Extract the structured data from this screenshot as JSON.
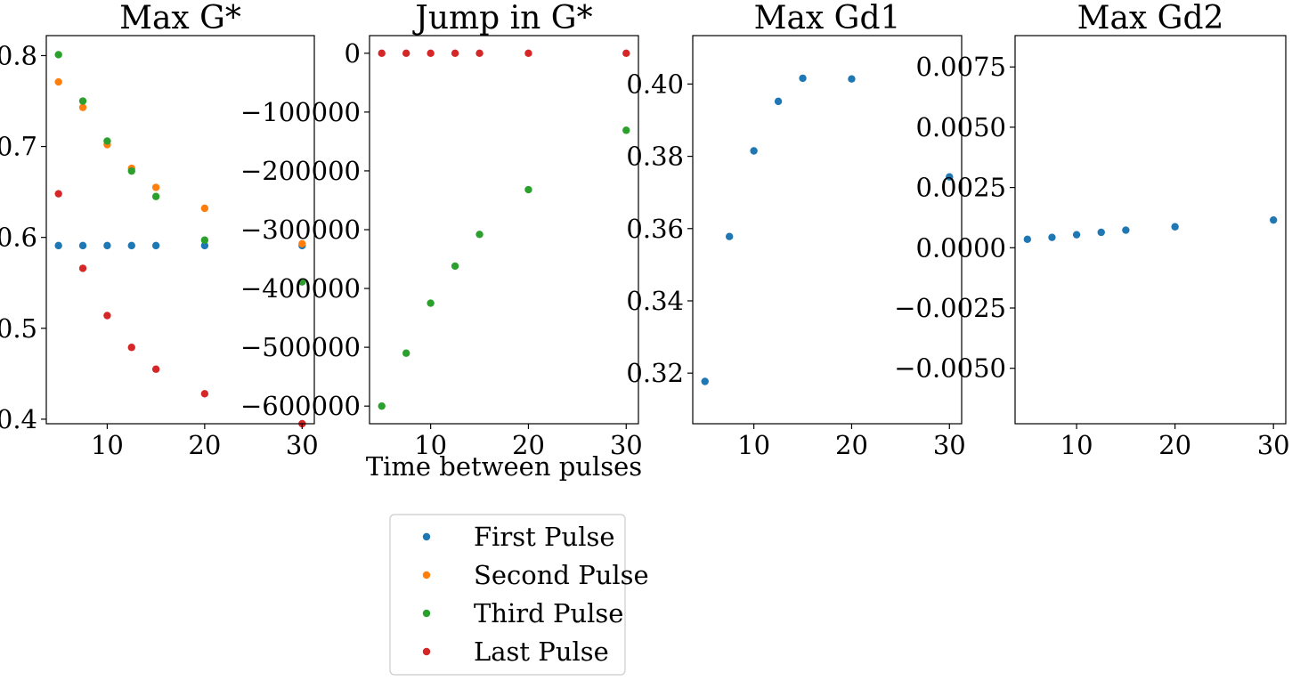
{
  "figure": {
    "legend": {
      "placement": "below second panel",
      "entries": [
        {
          "label": "First Pulse",
          "color": "#1f77b4"
        },
        {
          "label": "Second Pulse",
          "color": "#ff7f0e"
        },
        {
          "label": "Third Pulse",
          "color": "#2ca02c"
        },
        {
          "label": "Last Pulse",
          "color": "#d62728"
        }
      ]
    }
  },
  "chart_data": [
    {
      "type": "scatter",
      "title": "Max G*",
      "xlabel": "",
      "ylabel": "",
      "xlim": [
        3.75,
        31.25
      ],
      "ylim": [
        0.395,
        0.822
      ],
      "xticks": [
        10,
        20,
        30
      ],
      "xtick_labels": [
        "10",
        "20",
        "30"
      ],
      "yticks": [
        0.4,
        0.5,
        0.6,
        0.7,
        0.8
      ],
      "ytick_labels": [
        "0.4",
        "0.5",
        "0.6",
        "0.7",
        "0.8"
      ],
      "grid": false,
      "series": [
        {
          "color": "#1f77b4",
          "x": [
            5,
            7.5,
            10,
            12.5,
            15,
            20,
            30
          ],
          "y": [
            0.591,
            0.591,
            0.591,
            0.591,
            0.591,
            0.591,
            0.591
          ]
        },
        {
          "color": "#ff7f0e",
          "x": [
            5,
            7.5,
            10,
            12.5,
            15,
            20,
            30
          ],
          "y": [
            0.771,
            0.743,
            0.702,
            0.676,
            0.655,
            0.632,
            0.593
          ]
        },
        {
          "color": "#2ca02c",
          "x": [
            5,
            7.5,
            10,
            12.5,
            15,
            20,
            30
          ],
          "y": [
            0.801,
            0.75,
            0.706,
            0.673,
            0.645,
            0.597,
            0.551
          ]
        },
        {
          "color": "#d62728",
          "x": [
            5,
            7.5,
            10,
            12.5,
            15,
            20,
            30
          ],
          "y": [
            0.648,
            0.566,
            0.514,
            0.479,
            0.455,
            0.428,
            0.395
          ]
        }
      ]
    },
    {
      "type": "scatter",
      "title": "Jump in G*",
      "xlabel": "Time between pulses",
      "ylabel": "",
      "xlim": [
        3.75,
        31.25
      ],
      "ylim": [
        -630000,
        30000
      ],
      "xticks": [
        10,
        20,
        30
      ],
      "xtick_labels": [
        "10",
        "20",
        "30"
      ],
      "yticks": [
        0,
        -100000,
        -200000,
        -300000,
        -400000,
        -500000,
        -600000
      ],
      "ytick_labels": [
        "0",
        "−100000",
        "−200000",
        "−300000",
        "−400000",
        "−500000",
        "−600000"
      ],
      "grid": false,
      "series": [
        {
          "color": "#2ca02c",
          "x": [
            5,
            7.5,
            10,
            12.5,
            15,
            20,
            30
          ],
          "y": [
            -600000,
            -510000,
            -425000,
            -362000,
            -308000,
            -232000,
            -131000
          ]
        },
        {
          "color": "#d62728",
          "x": [
            5,
            7.5,
            10,
            12.5,
            15,
            20,
            30
          ],
          "y": [
            0,
            0,
            0,
            0,
            0,
            0,
            0
          ]
        }
      ]
    },
    {
      "type": "scatter",
      "title": "Max Gd1",
      "xlabel": "",
      "ylabel": "",
      "xlim": [
        3.75,
        31.25
      ],
      "ylim": [
        0.306,
        0.4134
      ],
      "xticks": [
        10,
        20,
        30
      ],
      "xtick_labels": [
        "10",
        "20",
        "30"
      ],
      "yticks": [
        0.32,
        0.34,
        0.36,
        0.38,
        0.4
      ],
      "ytick_labels": [
        "0.32",
        "0.34",
        "0.36",
        "0.38",
        "0.40"
      ],
      "grid": false,
      "series": [
        {
          "color": "#1f77b4",
          "x": [
            5,
            7.5,
            10,
            12.5,
            15,
            20,
            30
          ],
          "y": [
            0.3177,
            0.3578,
            0.3815,
            0.3952,
            0.4016,
            0.4014,
            0.3743
          ]
        }
      ]
    },
    {
      "type": "scatter",
      "title": "Max Gd2",
      "xlabel": "",
      "ylabel": "",
      "xlim": [
        3.75,
        31.25
      ],
      "ylim": [
        -0.0073,
        0.0088
      ],
      "xticks": [
        10,
        20,
        30
      ],
      "xtick_labels": [
        "10",
        "20",
        "30"
      ],
      "yticks": [
        0.0075,
        0.005,
        0.0025,
        0,
        -0.0025,
        -0.005
      ],
      "ytick_labels": [
        "0.0075",
        "0.0050",
        "0.0025",
        "0.0000",
        "−0.0025",
        "−0.0050"
      ],
      "grid": false,
      "series": [
        {
          "color": "#1f77b4",
          "x": [
            5,
            7.5,
            10,
            12.5,
            15,
            20,
            30
          ],
          "y": [
            0.00035,
            0.00043,
            0.00054,
            0.00064,
            0.00073,
            0.00087,
            0.00115
          ]
        }
      ]
    }
  ]
}
